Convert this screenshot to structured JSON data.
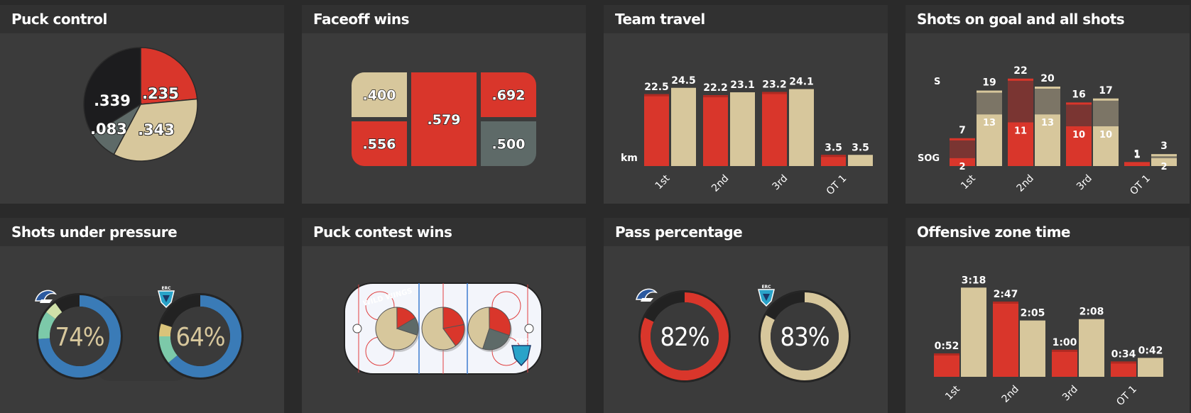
{
  "colors": {
    "red": "#d9362b",
    "tan": "#d7c79c",
    "dark": "#1c1c1e",
    "slate": "#5e6a68",
    "blue": "#3a7bb7",
    "teal": "#7cc9a9",
    "bg": "#3b3b3b"
  },
  "panels": [
    {
      "title": "Puck control"
    },
    {
      "title": "Faceoff wins"
    },
    {
      "title": "Team travel"
    },
    {
      "title": "Shots on goal and all shots"
    },
    {
      "title": "Shots under pressure"
    },
    {
      "title": "Puck contest wins"
    },
    {
      "title": "Pass percentage"
    },
    {
      "title": "Offensive zone time"
    }
  ],
  "chart_data": [
    {
      "type": "pie",
      "title": "Puck control",
      "slices": [
        {
          "label": ".235",
          "value": 0.235,
          "color": "#d9362b"
        },
        {
          "label": ".343",
          "value": 0.343,
          "color": "#d7c79c"
        },
        {
          "label": ".083",
          "value": 0.083,
          "color": "#5e6a68"
        },
        {
          "label": ".339",
          "value": 0.339,
          "color": "#1c1c1e"
        }
      ]
    },
    {
      "type": "table",
      "title": "Faceoff wins",
      "cells": [
        {
          "label": ".400",
          "color": "#d7c79c"
        },
        {
          "label": ".556",
          "color": "#d9362b"
        },
        {
          "label": ".579",
          "color": "#d9362b"
        },
        {
          "label": ".692",
          "color": "#d9362b"
        },
        {
          "label": ".500",
          "color": "#5e6a68"
        }
      ]
    },
    {
      "type": "bar",
      "title": "Team travel",
      "ylabel": "km",
      "categories": [
        "1st",
        "2nd",
        "3rd",
        "OT 1"
      ],
      "series": [
        {
          "values": [
            22.5,
            22.2,
            23.2,
            3.5
          ],
          "labels": [
            "22.5",
            "22.2",
            "23.2",
            "3.5"
          ],
          "color": "#d9362b"
        },
        {
          "values": [
            24.5,
            23.1,
            24.1,
            3.5
          ],
          "labels": [
            "24.5",
            "23.1",
            "24.1",
            "3.5"
          ],
          "color": "#d7c79c"
        }
      ]
    },
    {
      "type": "bar",
      "title": "Shots on goal and all shots",
      "row_labels": [
        "S",
        "SOG"
      ],
      "categories": [
        "1st",
        "2nd",
        "3rd",
        "OT 1"
      ],
      "series": [
        {
          "name": "SOG",
          "values": [
            2,
            11,
            10,
            1
          ],
          "color": "#d9362b"
        },
        {
          "name": "SOG",
          "values": [
            13,
            13,
            10,
            2
          ],
          "color": "#d7c79c"
        },
        {
          "name": "S",
          "values": [
            7,
            22,
            16,
            1
          ],
          "color": "#d9362b"
        },
        {
          "name": "S",
          "values": [
            19,
            20,
            17,
            3
          ],
          "color": "#d7c79c"
        }
      ]
    },
    {
      "type": "pie",
      "title": "Shots under pressure",
      "rings": [
        {
          "label": "74%",
          "value": 74,
          "logo": "Wild Wings"
        },
        {
          "label": "64%",
          "value": 64,
          "logo": "ERC"
        }
      ]
    },
    {
      "type": "pie",
      "title": "Puck contest wins",
      "pies": [
        {
          "tan": 0.7
        },
        {
          "tan": 0.6
        },
        {
          "tan": 0.45
        }
      ],
      "logo_text": "WILD WINGS",
      "rink_text": "ERC"
    },
    {
      "type": "pie",
      "title": "Pass percentage",
      "rings": [
        {
          "label": "82%",
          "value": 82,
          "logo": "Wild Wings"
        },
        {
          "label": "83%",
          "value": 83,
          "logo": "ERC"
        }
      ]
    },
    {
      "type": "bar",
      "title": "Offensive zone time",
      "categories": [
        "1st",
        "2nd",
        "3rd",
        "OT 1"
      ],
      "series": [
        {
          "values": [
            52,
            167,
            60,
            34
          ],
          "labels": [
            "0:52",
            "2:47",
            "1:00",
            "0:34"
          ],
          "color": "#d9362b"
        },
        {
          "values": [
            198,
            125,
            128,
            42
          ],
          "labels": [
            "3:18",
            "2:05",
            "2:08",
            "0:42"
          ],
          "color": "#d7c79c"
        }
      ]
    }
  ]
}
